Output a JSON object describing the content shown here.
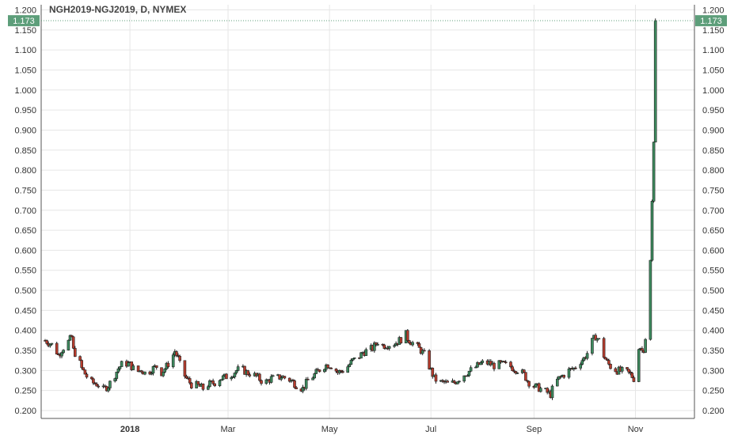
{
  "chart_data": {
    "type": "candlestick",
    "title": "NGH2019-NGJ2019, D, NYMEX",
    "last_price": "1.173",
    "ylim": [
      0.185,
      1.213
    ],
    "y_ticks": [
      "1.200",
      "1.150",
      "1.100",
      "1.050",
      "1.000",
      "0.950",
      "0.900",
      "0.850",
      "0.800",
      "0.750",
      "0.700",
      "0.650",
      "0.600",
      "0.550",
      "0.500",
      "0.450",
      "0.400",
      "0.350",
      "0.300",
      "0.250",
      "0.200"
    ],
    "x_ticks": [
      {
        "label": "2018",
        "day": 51,
        "bold": true
      },
      {
        "label": "Mar",
        "day": 110,
        "bold": false
      },
      {
        "label": "May",
        "day": 171,
        "bold": false
      },
      {
        "label": "Jul",
        "day": 232,
        "bold": false
      },
      {
        "label": "Sep",
        "day": 294,
        "bold": false
      },
      {
        "label": "Nov",
        "day": 355,
        "bold": false
      }
    ],
    "x_range": [
      0,
      377
    ],
    "grid": true,
    "colors": {
      "up": "#3d8b5e",
      "down": "#b83c2d",
      "price_tag": "#5d9e7a",
      "grid": "#e6e6e6"
    },
    "anchors": [
      [
        0,
        0.375
      ],
      [
        5,
        0.362
      ],
      [
        8,
        0.338
      ],
      [
        10,
        0.352
      ],
      [
        14,
        0.372
      ],
      [
        16,
        0.383
      ],
      [
        17,
        0.35
      ],
      [
        20,
        0.33
      ],
      [
        22,
        0.305
      ],
      [
        25,
        0.285
      ],
      [
        28,
        0.27
      ],
      [
        32,
        0.265
      ],
      [
        35,
        0.252
      ],
      [
        38,
        0.262
      ],
      [
        41,
        0.282
      ],
      [
        44,
        0.305
      ],
      [
        47,
        0.32
      ],
      [
        51,
        0.315
      ],
      [
        55,
        0.295
      ],
      [
        58,
        0.302
      ],
      [
        61,
        0.29
      ],
      [
        64,
        0.303
      ],
      [
        67,
        0.31
      ],
      [
        70,
        0.295
      ],
      [
        73,
        0.31
      ],
      [
        76,
        0.33
      ],
      [
        78,
        0.348
      ],
      [
        80,
        0.33
      ],
      [
        82,
        0.3
      ],
      [
        85,
        0.28
      ],
      [
        88,
        0.265
      ],
      [
        92,
        0.262
      ],
      [
        95,
        0.255
      ],
      [
        98,
        0.265
      ],
      [
        102,
        0.27
      ],
      [
        105,
        0.28
      ],
      [
        108,
        0.283
      ],
      [
        112,
        0.29
      ],
      [
        115,
        0.3
      ],
      [
        118,
        0.305
      ],
      [
        121,
        0.295
      ],
      [
        124,
        0.292
      ],
      [
        127,
        0.285
      ],
      [
        130,
        0.275
      ],
      [
        133,
        0.272
      ],
      [
        136,
        0.28
      ],
      [
        139,
        0.28
      ],
      [
        142,
        0.285
      ],
      [
        145,
        0.28
      ],
      [
        148,
        0.275
      ],
      [
        152,
        0.26
      ],
      [
        155,
        0.255
      ],
      [
        158,
        0.275
      ],
      [
        161,
        0.285
      ],
      [
        164,
        0.298
      ],
      [
        167,
        0.31
      ],
      [
        170,
        0.315
      ],
      [
        173,
        0.31
      ],
      [
        176,
        0.295
      ],
      [
        179,
        0.3
      ],
      [
        182,
        0.31
      ],
      [
        185,
        0.325
      ],
      [
        188,
        0.33
      ],
      [
        191,
        0.345
      ],
      [
        194,
        0.35
      ],
      [
        197,
        0.355
      ],
      [
        200,
        0.372
      ],
      [
        203,
        0.362
      ],
      [
        206,
        0.365
      ],
      [
        209,
        0.365
      ],
      [
        212,
        0.372
      ],
      [
        214,
        0.378
      ],
      [
        216,
        0.4
      ],
      [
        218,
        0.38
      ],
      [
        220,
        0.372
      ],
      [
        223,
        0.362
      ],
      [
        226,
        0.35
      ],
      [
        229,
        0.335
      ],
      [
        231,
        0.31
      ],
      [
        234,
        0.28
      ],
      [
        237,
        0.27
      ],
      [
        240,
        0.27
      ],
      [
        243,
        0.265
      ],
      [
        246,
        0.27
      ],
      [
        249,
        0.28
      ],
      [
        252,
        0.29
      ],
      [
        255,
        0.298
      ],
      [
        258,
        0.305
      ],
      [
        261,
        0.315
      ],
      [
        264,
        0.32
      ],
      [
        267,
        0.318
      ],
      [
        270,
        0.312
      ],
      [
        273,
        0.315
      ],
      [
        276,
        0.315
      ],
      [
        279,
        0.312
      ],
      [
        282,
        0.305
      ],
      [
        285,
        0.3
      ],
      [
        288,
        0.29
      ],
      [
        290,
        0.275
      ],
      [
        293,
        0.262
      ],
      [
        296,
        0.258
      ],
      [
        299,
        0.252
      ],
      [
        302,
        0.245
      ],
      [
        304,
        0.24
      ],
      [
        306,
        0.265
      ],
      [
        309,
        0.28
      ],
      [
        312,
        0.29
      ],
      [
        315,
        0.3
      ],
      [
        318,
        0.305
      ],
      [
        321,
        0.32
      ],
      [
        324,
        0.33
      ],
      [
        327,
        0.35
      ],
      [
        329,
        0.372
      ],
      [
        331,
        0.385
      ],
      [
        333,
        0.375
      ],
      [
        335,
        0.345
      ],
      [
        338,
        0.32
      ],
      [
        341,
        0.305
      ],
      [
        344,
        0.3
      ],
      [
        347,
        0.298
      ],
      [
        350,
        0.295
      ],
      [
        352,
        0.29
      ],
      [
        354,
        0.28
      ],
      [
        356,
        0.35
      ],
      [
        358,
        0.355
      ],
      [
        360,
        0.345
      ],
      [
        362,
        0.41
      ],
      [
        364,
        0.575
      ],
      [
        366,
        0.87
      ],
      [
        367,
        1.173
      ]
    ]
  }
}
